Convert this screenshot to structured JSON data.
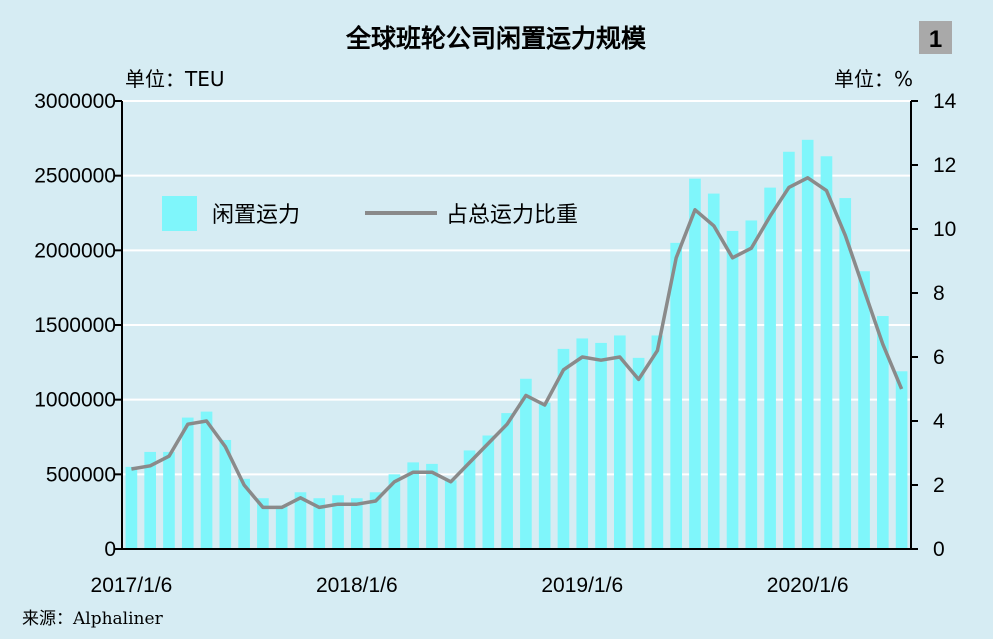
{
  "badge": "1",
  "source": "来源：Alphaliner",
  "colors": {
    "background": "#d6ecf3",
    "bar": "#7ff6fb",
    "line": "#8a8a8a",
    "grid": "#ffffff",
    "axis": "#000000",
    "badge_bg": "#a9a9a9"
  },
  "chart_data": {
    "type": "bar",
    "title": "全球班轮公司闲置运力规模",
    "y_left_label": "单位：TEU",
    "y_right_label": "单位：%",
    "y_left_range": [
      0,
      3000000
    ],
    "y_left_ticks": [
      "0",
      "500000",
      "1000000",
      "1500000",
      "2000000",
      "2500000",
      "3000000"
    ],
    "y_right_range": [
      0,
      14
    ],
    "y_right_ticks": [
      "0",
      "2",
      "4",
      "6",
      "8",
      "10",
      "12",
      "14"
    ],
    "x_tick_labels": [
      "2017/1/6",
      "2018/1/6",
      "2019/1/6",
      "2020/1/6"
    ],
    "x_tick_label_positions": [
      0,
      12,
      24,
      36
    ],
    "grid": true,
    "legend_position": "top-left",
    "series": [
      {
        "name": "闲置运力",
        "type": "bar",
        "axis": "left",
        "values": [
          550000,
          650000,
          650000,
          880000,
          920000,
          730000,
          470000,
          340000,
          290000,
          380000,
          340000,
          360000,
          340000,
          380000,
          500000,
          580000,
          570000,
          460000,
          660000,
          760000,
          910000,
          1140000,
          980000,
          1340000,
          1410000,
          1380000,
          1430000,
          1280000,
          1430000,
          2050000,
          2480000,
          2380000,
          2130000,
          2200000,
          2420000,
          2660000,
          2740000,
          2630000,
          2350000,
          1860000,
          1560000,
          1190000
        ]
      },
      {
        "name": "占总运力比重",
        "type": "line",
        "axis": "right",
        "values": [
          2.5,
          2.6,
          2.9,
          3.9,
          4.0,
          3.2,
          2.0,
          1.3,
          1.3,
          1.6,
          1.3,
          1.4,
          1.4,
          1.5,
          2.1,
          2.4,
          2.4,
          2.1,
          2.7,
          3.3,
          3.9,
          4.8,
          4.5,
          5.6,
          6.0,
          5.9,
          6.0,
          5.3,
          6.2,
          9.1,
          10.6,
          10.1,
          9.1,
          9.4,
          10.4,
          11.3,
          11.6,
          11.2,
          9.8,
          8.1,
          6.4,
          5.0
        ]
      }
    ]
  }
}
